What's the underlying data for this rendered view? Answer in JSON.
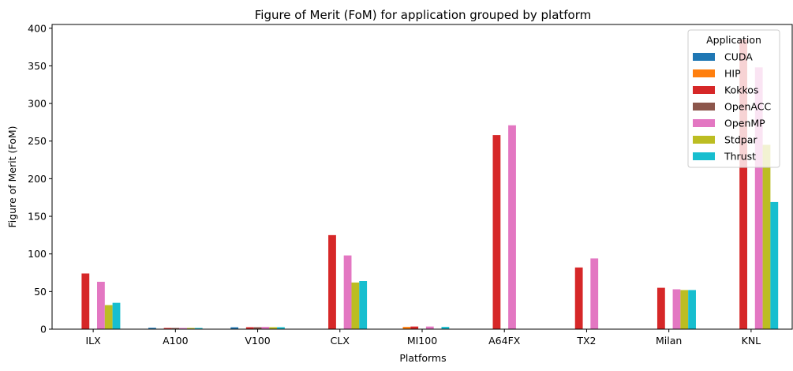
{
  "chart_data": {
    "type": "bar",
    "title": "Figure of Merit (FoM) for application grouped by platform",
    "xlabel": "Platforms",
    "ylabel": "Figure of Merit (FoM)",
    "ylim": [
      0,
      405
    ],
    "yticks": [
      0,
      50,
      100,
      150,
      200,
      250,
      300,
      350,
      400
    ],
    "grid": false,
    "legend_title": "Application",
    "legend_position": "top-right",
    "categories": [
      "ILX",
      "A100",
      "V100",
      "CLX",
      "MI100",
      "A64FX",
      "TX2",
      "Milan",
      "KNL"
    ],
    "series": [
      {
        "name": "CUDA",
        "color": "#1f77b4",
        "values": [
          null,
          1.8,
          2.5,
          null,
          null,
          null,
          null,
          null,
          null
        ]
      },
      {
        "name": "HIP",
        "color": "#ff7f0e",
        "values": [
          null,
          null,
          null,
          null,
          3.0,
          null,
          null,
          null,
          null
        ]
      },
      {
        "name": "Kokkos",
        "color": "#d62728",
        "values": [
          74,
          1.6,
          2.6,
          125,
          3.5,
          258,
          82,
          55,
          385
        ]
      },
      {
        "name": "OpenACC",
        "color": "#8c564b",
        "values": [
          null,
          1.6,
          2.6,
          null,
          null,
          null,
          null,
          null,
          null
        ]
      },
      {
        "name": "OpenMP",
        "color": "#e377c2",
        "values": [
          63,
          1.6,
          3.0,
          98,
          3.5,
          271,
          94,
          53,
          348
        ]
      },
      {
        "name": "Stdpar",
        "color": "#bcbd22",
        "values": [
          32,
          1.6,
          2.6,
          62,
          null,
          null,
          null,
          52,
          245
        ]
      },
      {
        "name": "Thrust",
        "color": "#17becf",
        "values": [
          35,
          1.6,
          2.6,
          64,
          3.0,
          null,
          null,
          52,
          169
        ]
      }
    ]
  }
}
